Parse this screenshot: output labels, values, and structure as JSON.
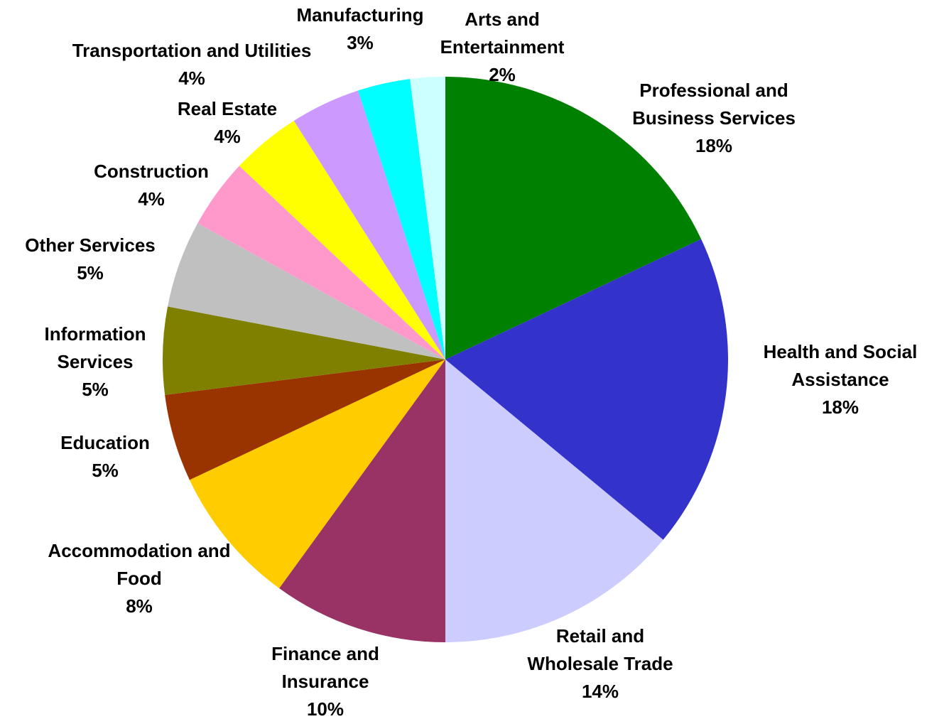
{
  "chart_data": {
    "type": "pie",
    "categories": [
      "Professional and Business Services",
      "Health and Social Assistance",
      "Retail and Wholesale Trade",
      "Finance and Insurance",
      "Accommodation and Food",
      "Education",
      "Information Services",
      "Other Services",
      "Construction",
      "Real Estate",
      "Transportation and Utilities",
      "Manufacturing",
      "Arts and Entertainment"
    ],
    "values": [
      18,
      18,
      14,
      10,
      8,
      5,
      5,
      5,
      4,
      4,
      4,
      3,
      2
    ],
    "value_labels": [
      "18%",
      "18%",
      "14%",
      "10%",
      "8%",
      "5%",
      "5%",
      "5%",
      "4%",
      "4%",
      "4%",
      "3%",
      "2%"
    ],
    "colors": [
      "#008000",
      "#3333cc",
      "#ccccff",
      "#993366",
      "#ffcc00",
      "#993300",
      "#808000",
      "#c0c0c0",
      "#ff99cc",
      "#ffff00",
      "#cc99ff",
      "#00ffff",
      "#ccffff"
    ]
  }
}
